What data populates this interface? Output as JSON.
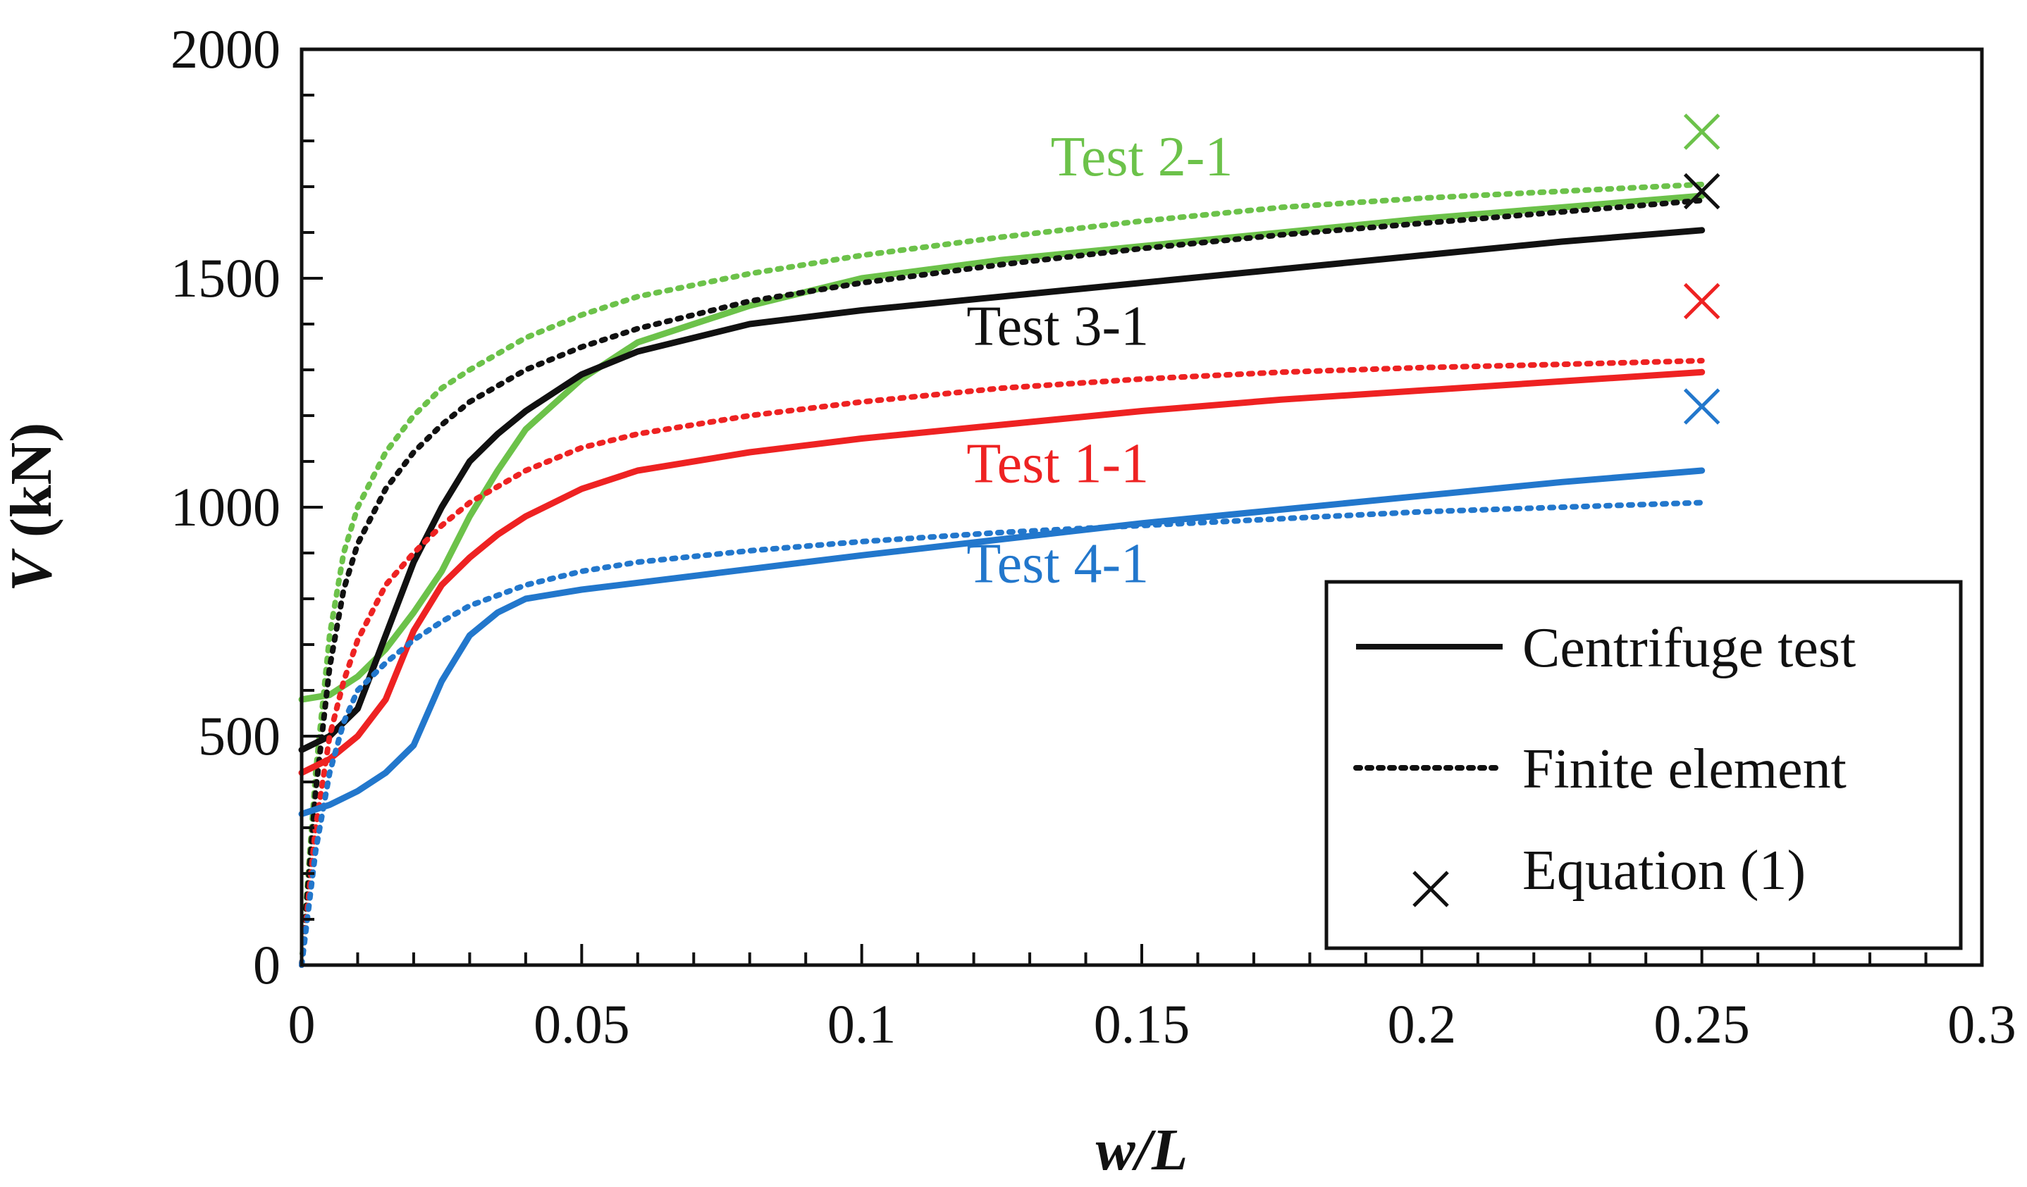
{
  "chart_data": {
    "type": "line",
    "title": "",
    "xlabel": "w/L",
    "ylabel": "V (kN)",
    "xlabel_parts": {
      "italic": "w/L"
    },
    "ylabel_parts": {
      "italic": "V",
      "rest": " (kN)"
    },
    "xlim": [
      0,
      0.3
    ],
    "ylim": [
      0,
      2000
    ],
    "x_ticks": [
      0,
      0.05,
      0.1,
      0.15,
      0.2,
      0.25,
      0.3
    ],
    "x_tick_labels": [
      "0",
      "0.05",
      "0.1",
      "0.15",
      "0.2",
      "0.25",
      "0.3"
    ],
    "y_ticks": [
      0,
      500,
      1000,
      1500,
      2000
    ],
    "y_tick_labels": [
      "0",
      "500",
      "1000",
      "1500",
      "2000"
    ],
    "grid": false,
    "legend_position": "bottom-right",
    "legend": [
      {
        "label": "Centrifuge test",
        "style": "solid"
      },
      {
        "label": "Finite element",
        "style": "dotted"
      },
      {
        "label": "Equation (1)",
        "style": "marker-x"
      }
    ],
    "series": [
      {
        "name": "Test 2-1",
        "color": "#6cc24a",
        "centrifuge": {
          "x": [
            0,
            0.005,
            0.01,
            0.015,
            0.02,
            0.025,
            0.03,
            0.035,
            0.04,
            0.05,
            0.06,
            0.08,
            0.1,
            0.125,
            0.15,
            0.175,
            0.2,
            0.225,
            0.25
          ],
          "y": [
            580,
            590,
            630,
            690,
            770,
            860,
            980,
            1080,
            1170,
            1280,
            1360,
            1440,
            1500,
            1540,
            1570,
            1600,
            1630,
            1655,
            1680
          ]
        },
        "finite_element": {
          "x": [
            0,
            0.0025,
            0.005,
            0.0075,
            0.01,
            0.015,
            0.02,
            0.025,
            0.03,
            0.04,
            0.05,
            0.06,
            0.08,
            0.1,
            0.125,
            0.15,
            0.175,
            0.2,
            0.225,
            0.25
          ],
          "y": [
            0,
            420,
            720,
            900,
            1000,
            1120,
            1200,
            1260,
            1300,
            1370,
            1420,
            1460,
            1510,
            1550,
            1590,
            1625,
            1655,
            1675,
            1690,
            1705
          ]
        },
        "equation_1": {
          "x": 0.25,
          "y": 1820
        }
      },
      {
        "name": "Test 3-1",
        "color": "#111111",
        "centrifuge": {
          "x": [
            0,
            0.005,
            0.01,
            0.015,
            0.02,
            0.025,
            0.03,
            0.035,
            0.04,
            0.05,
            0.06,
            0.08,
            0.1,
            0.125,
            0.15,
            0.175,
            0.2,
            0.225,
            0.25
          ],
          "y": [
            470,
            500,
            560,
            720,
            880,
            1000,
            1100,
            1160,
            1210,
            1290,
            1340,
            1400,
            1430,
            1460,
            1490,
            1520,
            1550,
            1580,
            1605
          ]
        },
        "finite_element": {
          "x": [
            0,
            0.0025,
            0.005,
            0.0075,
            0.01,
            0.015,
            0.02,
            0.025,
            0.03,
            0.04,
            0.05,
            0.06,
            0.08,
            0.1,
            0.125,
            0.15,
            0.175,
            0.2,
            0.225,
            0.25
          ],
          "y": [
            0,
            380,
            650,
            820,
            920,
            1040,
            1120,
            1180,
            1230,
            1300,
            1350,
            1390,
            1450,
            1490,
            1530,
            1565,
            1595,
            1620,
            1645,
            1670
          ]
        },
        "equation_1": {
          "x": 0.25,
          "y": 1690
        }
      },
      {
        "name": "Test 1-1",
        "color": "#ee2222",
        "centrifuge": {
          "x": [
            0,
            0.005,
            0.01,
            0.015,
            0.02,
            0.025,
            0.03,
            0.035,
            0.04,
            0.05,
            0.06,
            0.08,
            0.1,
            0.125,
            0.15,
            0.175,
            0.2,
            0.225,
            0.25
          ],
          "y": [
            420,
            450,
            500,
            580,
            730,
            830,
            890,
            940,
            980,
            1040,
            1080,
            1120,
            1150,
            1180,
            1210,
            1235,
            1255,
            1275,
            1295
          ]
        },
        "finite_element": {
          "x": [
            0,
            0.0025,
            0.005,
            0.0075,
            0.01,
            0.015,
            0.02,
            0.025,
            0.03,
            0.04,
            0.05,
            0.06,
            0.08,
            0.1,
            0.125,
            0.15,
            0.175,
            0.2,
            0.225,
            0.25
          ],
          "y": [
            0,
            300,
            500,
            620,
            710,
            830,
            900,
            960,
            1010,
            1080,
            1130,
            1160,
            1200,
            1230,
            1260,
            1280,
            1295,
            1305,
            1312,
            1320
          ]
        },
        "equation_1": {
          "x": 0.25,
          "y": 1450
        }
      },
      {
        "name": "Test 4-1",
        "color": "#2277cc",
        "centrifuge": {
          "x": [
            0,
            0.005,
            0.01,
            0.015,
            0.02,
            0.025,
            0.03,
            0.035,
            0.04,
            0.05,
            0.06,
            0.08,
            0.1,
            0.125,
            0.15,
            0.175,
            0.2,
            0.225,
            0.25
          ],
          "y": [
            330,
            350,
            380,
            420,
            480,
            620,
            720,
            770,
            800,
            820,
            835,
            865,
            895,
            930,
            965,
            995,
            1025,
            1055,
            1080
          ]
        },
        "finite_element": {
          "x": [
            0,
            0.0025,
            0.005,
            0.0075,
            0.01,
            0.015,
            0.02,
            0.025,
            0.03,
            0.04,
            0.05,
            0.06,
            0.08,
            0.1,
            0.125,
            0.15,
            0.175,
            0.2,
            0.225,
            0.25
          ],
          "y": [
            0,
            250,
            420,
            530,
            600,
            660,
            710,
            750,
            785,
            830,
            860,
            880,
            905,
            925,
            945,
            960,
            975,
            990,
            1000,
            1010
          ]
        },
        "equation_1": {
          "x": 0.25,
          "y": 1220
        }
      }
    ],
    "series_labels": [
      {
        "text": "Test 2-1",
        "color": "#6cc24a",
        "anchor_x": 0.15,
        "anchor_y": 1725
      },
      {
        "text": "Test 3-1",
        "color": "#111111",
        "anchor_x": 0.135,
        "anchor_y": 1355
      },
      {
        "text": "Test 1-1",
        "color": "#ee2222",
        "anchor_x": 0.135,
        "anchor_y": 1055
      },
      {
        "text": "Test 4-1",
        "color": "#2277cc",
        "anchor_x": 0.135,
        "anchor_y": 836
      }
    ]
  }
}
